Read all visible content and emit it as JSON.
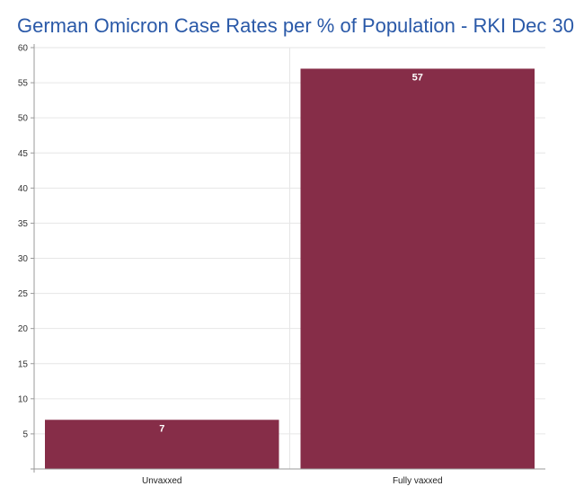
{
  "chart_data": {
    "type": "bar",
    "title": "German Omicron Case Rates per % of Population - RKI Dec 30",
    "xlabel": "",
    "ylabel": "",
    "categories": [
      "Unvaxxed",
      "Fully vaxxed"
    ],
    "values": [
      7,
      57
    ],
    "data_labels": [
      "7",
      "57"
    ],
    "ylim": [
      0,
      60
    ],
    "yticks": [
      5,
      10,
      15,
      20,
      25,
      30,
      35,
      40,
      45,
      50,
      55,
      60
    ],
    "grid": true,
    "legend": "none",
    "bar_color": "#862d48"
  }
}
